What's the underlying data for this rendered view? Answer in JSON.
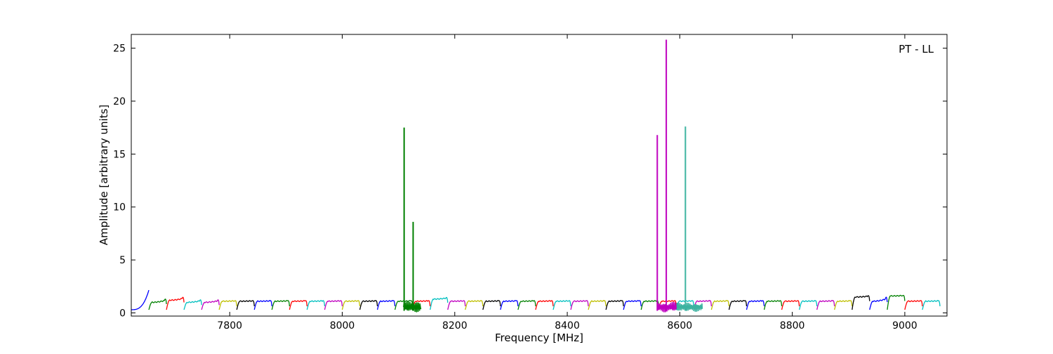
{
  "chart_data": {
    "type": "line",
    "title": "",
    "annotation": "PT - LL",
    "xlabel": "Frequency [MHz]",
    "ylabel": "Amplitude [arbitrary units]",
    "xlim": [
      7625,
      9075
    ],
    "ylim": [
      -0.3,
      26.3
    ],
    "xticks": [
      7800,
      8000,
      8200,
      8400,
      8600,
      8800,
      9000
    ],
    "yticks": [
      0,
      5,
      10,
      15,
      20,
      25
    ],
    "grid": false,
    "legend": "none",
    "series_colors": [
      "#0000ff",
      "#008000",
      "#ff0000",
      "#00bfbf",
      "#bf00bf",
      "#bfbf00",
      "#000000"
    ],
    "band": {
      "start": 7625,
      "width": 31.25,
      "count": 46,
      "baseline": 0.3,
      "plateau": 1.1
    },
    "band_overrides": [
      {
        "index": 0,
        "plateau": 1.2,
        "edge_peak": 2.15
      },
      {
        "index": 1,
        "plateau": 1.0,
        "edge_peak": 1.45
      },
      {
        "index": 2,
        "plateau": 1.2,
        "edge_peak": 1.6
      },
      {
        "index": 3,
        "plateau": 1.0,
        "edge_peak": 1.35
      },
      {
        "index": 4,
        "plateau": 1.0,
        "edge_peak": 1.35
      },
      {
        "index": 17,
        "plateau": 1.3,
        "edge_peak": 1.55
      },
      {
        "index": 41,
        "plateau": 1.5,
        "edge_peak": 1.7
      },
      {
        "index": 42,
        "plateau": 1.1,
        "edge_peak": 1.65
      },
      {
        "index": 43,
        "plateau": 1.6,
        "edge_peak": 1.7
      }
    ],
    "noisy_regions": [
      {
        "start": 8109,
        "end": 8140,
        "amplitude": 0.55,
        "color": "#008000"
      },
      {
        "start": 8560,
        "end": 8595,
        "amplitude": 0.5,
        "color": "#bf00bf"
      },
      {
        "start": 8595,
        "end": 8640,
        "amplitude": 0.45,
        "color": "#3cb3a0"
      }
    ],
    "spikes": [
      {
        "x": 8110,
        "y": 17.5,
        "color": "#008000"
      },
      {
        "x": 8126,
        "y": 8.6,
        "color": "#008000"
      },
      {
        "x": 8560,
        "y": 16.8,
        "color": "#bf00bf"
      },
      {
        "x": 8576,
        "y": 25.8,
        "color": "#bf00bf"
      },
      {
        "x": 8610,
        "y": 17.6,
        "color": "#3cb3a0"
      }
    ]
  }
}
